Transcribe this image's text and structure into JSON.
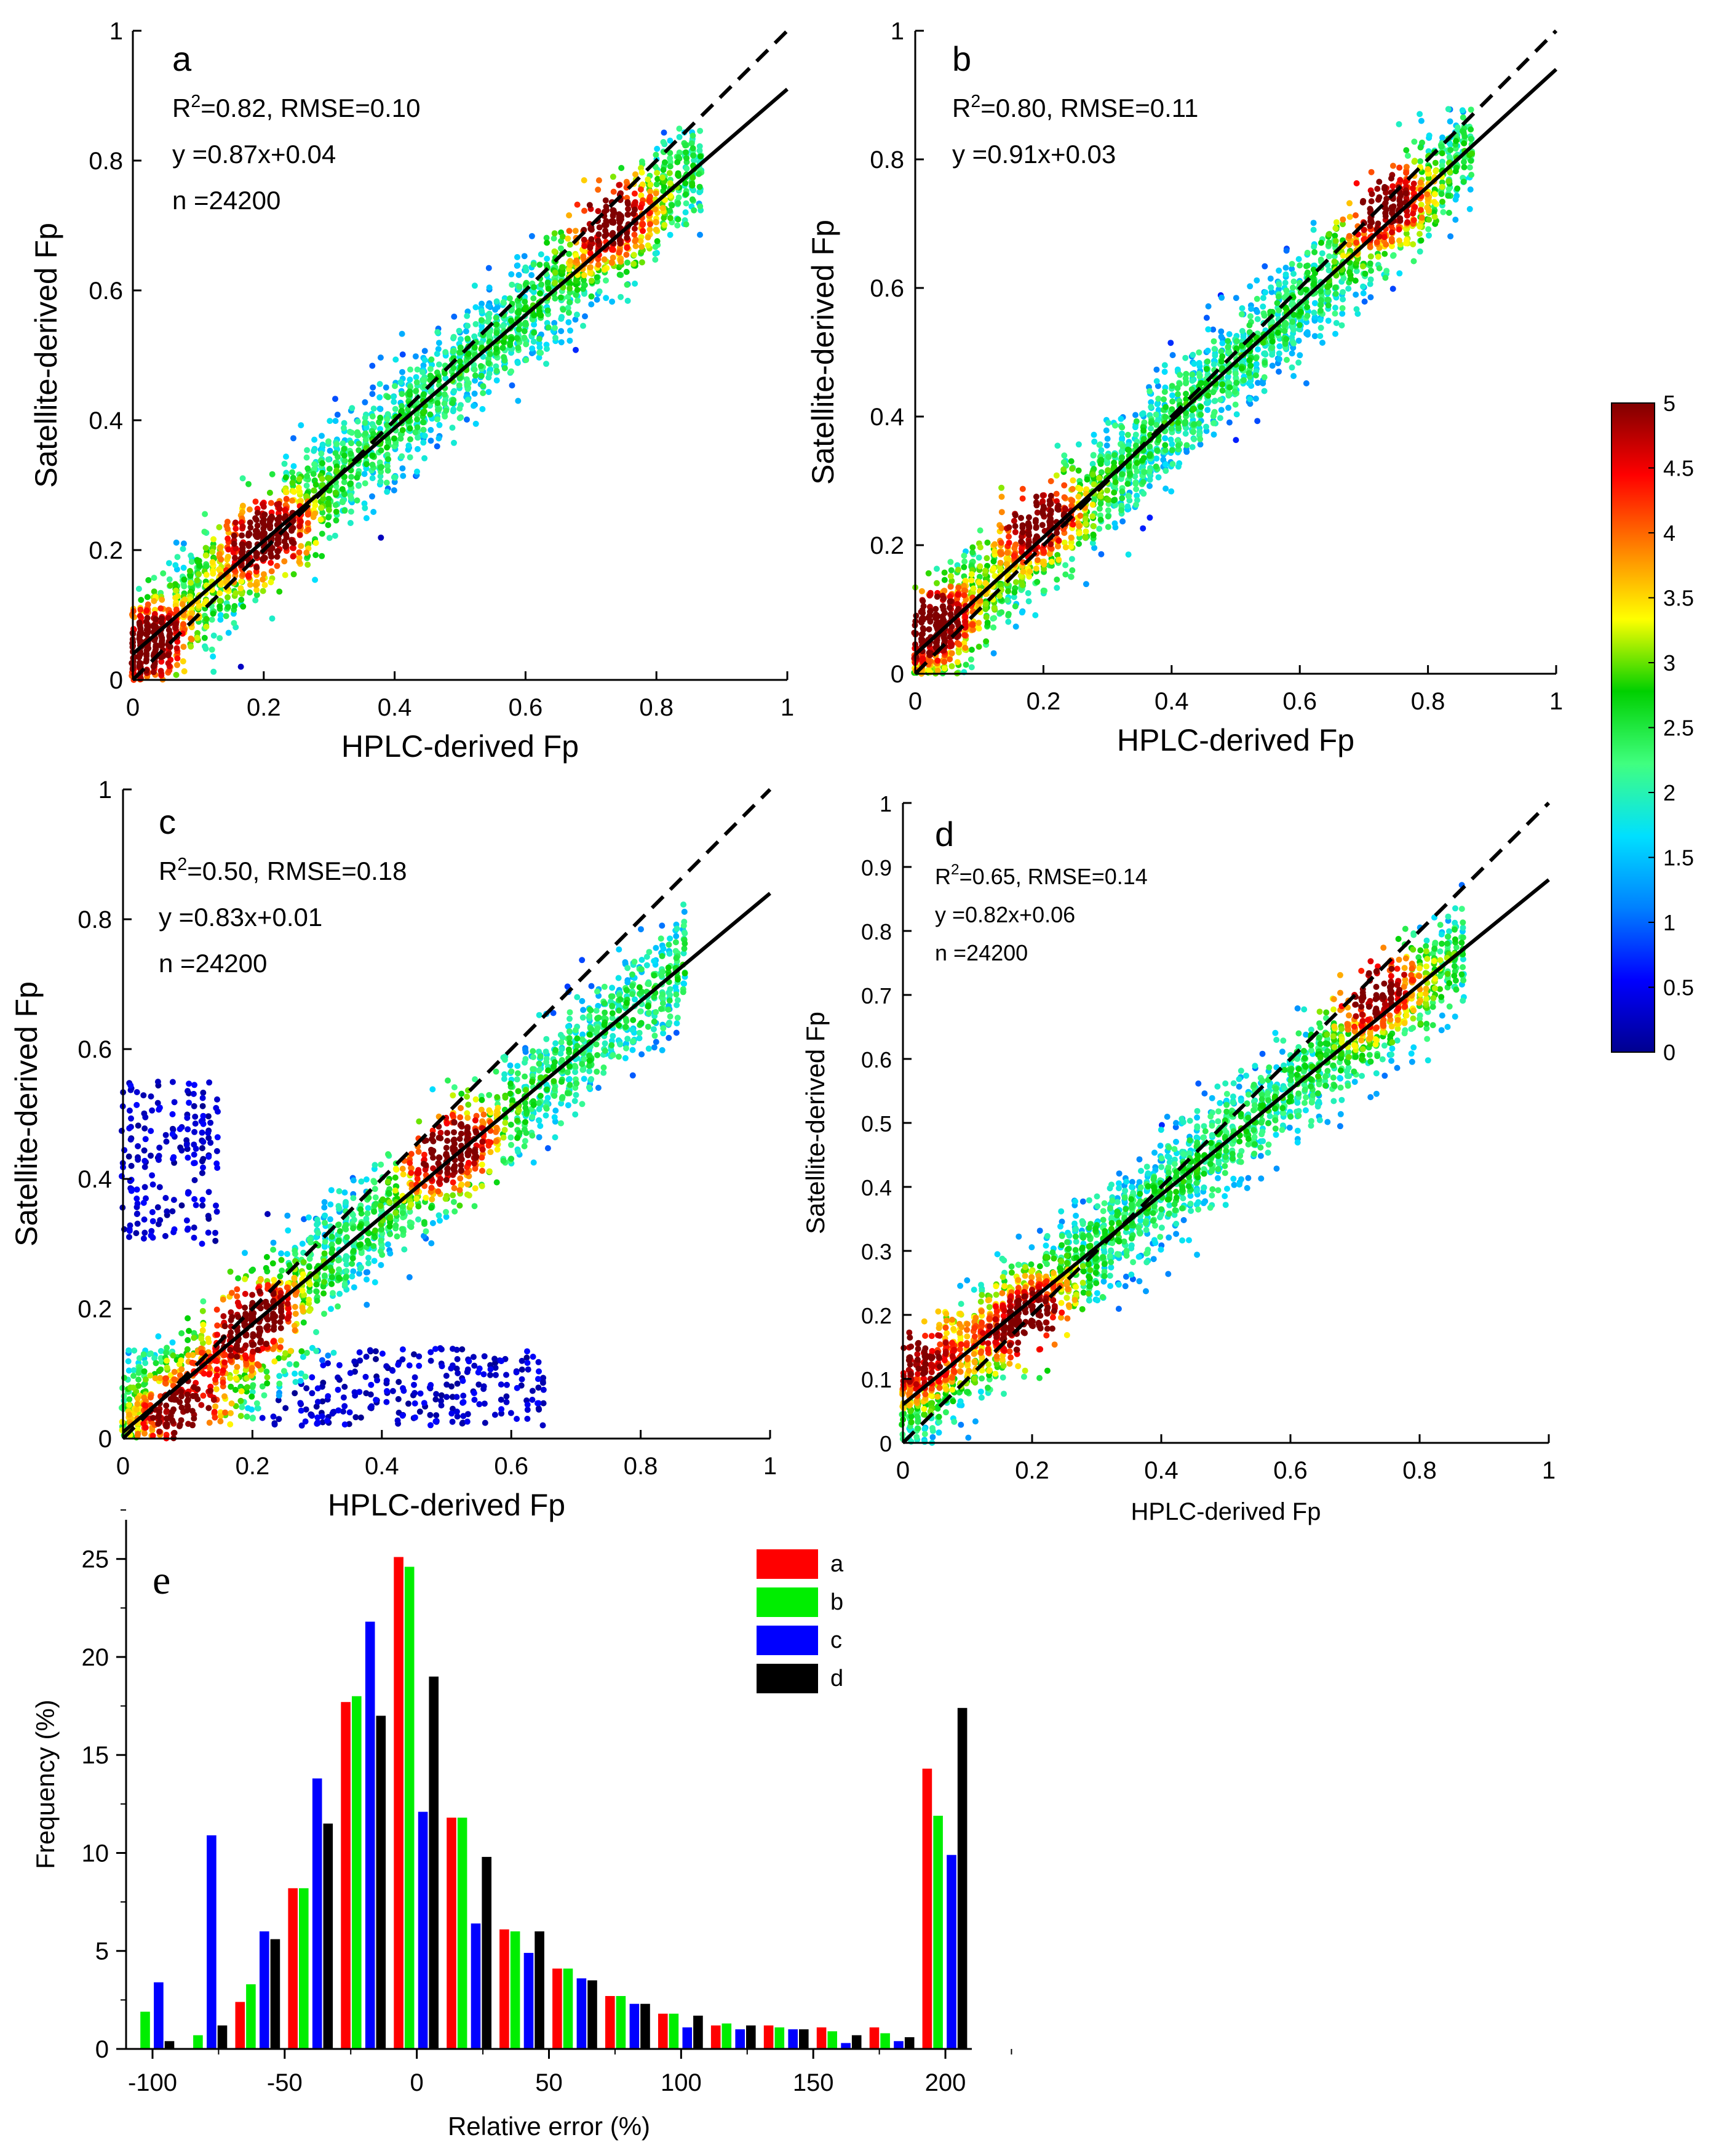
{
  "chart_data": [
    {
      "id": "a",
      "type": "scatter",
      "label": "a",
      "stats": {
        "r2_prefix": "R",
        "r2_exp": "2",
        "r2_rest": "=0.82, RMSE=0.10",
        "eq": "y =0.87x+0.04",
        "n": "n =24200"
      },
      "xlabel": "HPLC-derived Fp",
      "ylabel": "Satellite-derived Fp",
      "xlim": [
        0,
        1
      ],
      "ylim": [
        0,
        1
      ],
      "xticks": [
        "0",
        "0.2",
        "0.4",
        "0.6",
        "0.8",
        "1"
      ],
      "yticks": [
        "0",
        "0.2",
        "0.4",
        "0.6",
        "0.8",
        "1"
      ],
      "fit": {
        "slope": 0.87,
        "intercept": 0.04
      },
      "density_peaks": [
        [
          0.02,
          0.05
        ],
        [
          0.2,
          0.22
        ],
        [
          0.72,
          0.72
        ]
      ],
      "seed": 11
    },
    {
      "id": "b",
      "type": "scatter",
      "label": "b",
      "stats": {
        "r2_prefix": "R",
        "r2_exp": "2",
        "r2_rest": "=0.80, RMSE=0.11",
        "eq": "y =0.91x+0.03"
      },
      "xlabel": "HPLC-derived Fp",
      "ylabel": "Satellite-derived Fp",
      "xlim": [
        0,
        1
      ],
      "ylim": [
        0,
        1
      ],
      "xticks": [
        "0",
        "0.2",
        "0.4",
        "0.6",
        "0.8",
        "1"
      ],
      "yticks": [
        "0",
        "0.2",
        "0.4",
        "0.6",
        "0.8",
        "1"
      ],
      "fit": {
        "slope": 0.91,
        "intercept": 0.03
      },
      "density_peaks": [
        [
          0.02,
          0.08
        ],
        [
          0.18,
          0.25
        ],
        [
          0.72,
          0.74
        ]
      ],
      "seed": 23
    },
    {
      "id": "c",
      "type": "scatter",
      "label": "c",
      "stats": {
        "r2_prefix": "R",
        "r2_exp": "2",
        "r2_rest": "=0.50, RMSE=0.18",
        "eq": "y =0.83x+0.01",
        "n": "n =24200"
      },
      "xlabel": "HPLC-derived Fp",
      "ylabel": "Satellite-derived Fp",
      "xlim": [
        0,
        1
      ],
      "ylim": [
        0,
        1
      ],
      "xticks": [
        "0",
        "0.2",
        "0.4",
        "0.6",
        "0.8",
        "1"
      ],
      "yticks": [
        "0",
        "0.2",
        "0.4",
        "0.6",
        "0.8",
        "1"
      ],
      "fit": {
        "slope": 0.83,
        "intercept": 0.01
      },
      "density_peaks": [
        [
          0.1,
          0.03
        ],
        [
          0.2,
          0.18
        ],
        [
          0.5,
          0.45
        ]
      ],
      "seed": 37
    },
    {
      "id": "d",
      "type": "scatter",
      "label": "d",
      "stats": {
        "r2_prefix": "R",
        "r2_exp": "2",
        "r2_rest": "=0.65, RMSE=0.14",
        "eq": "y =0.82x+0.06",
        "n": "n =24200"
      },
      "xlabel": "HPLC-derived Fp",
      "ylabel": "Satellite-derived Fp",
      "xlim": [
        0,
        1
      ],
      "ylim": [
        0,
        1
      ],
      "xticks": [
        "0",
        "0.2",
        "0.4",
        "0.6",
        "0.8",
        "1"
      ],
      "yticks": [
        "0",
        "0.1",
        "0.2",
        "0.3",
        "0.4",
        "0.5",
        "0.6",
        "0.7",
        "0.8",
        "0.9",
        "1"
      ],
      "fit": {
        "slope": 0.82,
        "intercept": 0.06
      },
      "density_peaks": [
        [
          0.01,
          0.15
        ],
        [
          0.2,
          0.18
        ],
        [
          0.72,
          0.72
        ]
      ],
      "seed": 53
    },
    {
      "id": "e",
      "type": "bar",
      "label": "e",
      "xlabel": "Relative error (%)",
      "ylabel": "Frequency (%)",
      "xlim": [
        -110,
        210
      ],
      "ylim": [
        0,
        27
      ],
      "xticks": [
        "-100",
        "-50",
        "0",
        "50",
        "100",
        "150",
        "200"
      ],
      "yticks": [
        "0",
        "5",
        "10",
        "15",
        "20",
        "25"
      ],
      "categories": [
        -100,
        -80,
        -60,
        -40,
        -20,
        0,
        20,
        40,
        60,
        80,
        100,
        120,
        140,
        160,
        180,
        200
      ],
      "series": [
        {
          "name": "a",
          "color": "#ff0000",
          "values": [
            0,
            0,
            2.4,
            8.2,
            17.7,
            25.1,
            11.8,
            6.1,
            4.1,
            2.7,
            1.8,
            1.2,
            1.2,
            1.1,
            1.1,
            14.3
          ]
        },
        {
          "name": "b",
          "color": "#00ee00",
          "values": [
            1.9,
            0.7,
            3.3,
            8.2,
            18.0,
            24.6,
            11.8,
            6.0,
            4.1,
            2.7,
            1.8,
            1.3,
            1.1,
            0.9,
            0.8,
            11.9
          ]
        },
        {
          "name": "c",
          "color": "#0000ff",
          "values": [
            3.4,
            10.9,
            6.0,
            13.8,
            21.8,
            12.1,
            6.4,
            4.9,
            3.6,
            2.3,
            1.1,
            1.0,
            1.0,
            0.3,
            0.4,
            9.9
          ]
        },
        {
          "name": "d",
          "color": "#000000",
          "values": [
            0.4,
            1.2,
            5.6,
            11.5,
            17.0,
            19.0,
            9.8,
            6.0,
            3.5,
            2.3,
            1.7,
            1.2,
            1.0,
            0.7,
            0.6,
            17.4
          ]
        }
      ]
    }
  ],
  "colorbar": {
    "min": 0,
    "max": 5,
    "ticks": [
      "0",
      "0.5",
      "1",
      "1.5",
      "2",
      "2.5",
      "3",
      "3.5",
      "4",
      "4.5",
      "5"
    ],
    "stops": [
      "#00008f",
      "#0000ff",
      "#0080ff",
      "#00e0ff",
      "#40ff80",
      "#00d000",
      "#ffff00",
      "#ff8000",
      "#ff0000",
      "#800000"
    ]
  }
}
